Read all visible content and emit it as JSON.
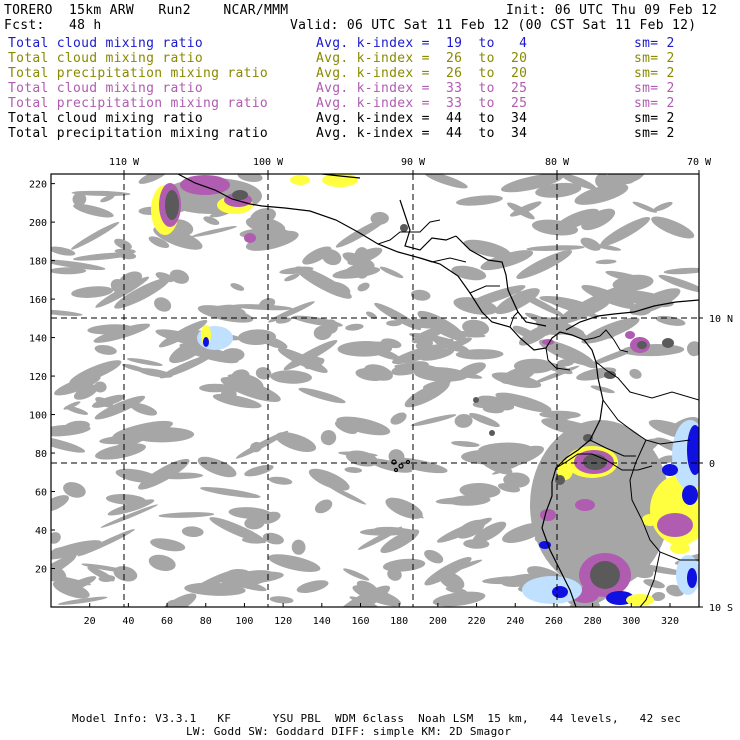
{
  "header": {
    "model": "TORERO  15km ARW   Run2    NCAR/MMM",
    "init": "Init: 06 UTC Thu 09 Feb 12",
    "fcst": "Fcst:   48 h",
    "valid": "Valid: 06 UTC Sat 11 Feb 12 (00 CST Sat 11 Feb 12)"
  },
  "legend": [
    {
      "field": "Total cloud mixing ratio",
      "avg": "Avg. k-index =  19  to   4",
      "sm": "sm= 2",
      "color": "#1a1acc"
    },
    {
      "field": "Total cloud mixing ratio",
      "avg": "Avg. k-index =  26  to  20",
      "sm": "sm= 2",
      "color": "#8a8a00"
    },
    {
      "field": "Total precipitation mixing ratio",
      "avg": "Avg. k-index =  26  to  20",
      "sm": "sm= 2",
      "color": "#8a8a00"
    },
    {
      "field": "Total cloud mixing ratio",
      "avg": "Avg. k-index =  33  to  25",
      "sm": "sm= 2",
      "color": "#b05cb0"
    },
    {
      "field": "Total precipitation mixing ratio",
      "avg": "Avg. k-index =  33  to  25",
      "sm": "sm= 2",
      "color": "#b05cb0"
    },
    {
      "field": "Total cloud mixing ratio",
      "avg": "Avg. k-index =  44  to  34",
      "sm": "sm= 2",
      "color": "#000000"
    },
    {
      "field": "Total precipitation mixing ratio",
      "avg": "Avg. k-index =  44  to  34",
      "sm": "sm= 2",
      "color": "#000000"
    }
  ],
  "map": {
    "lon_labels": [
      "110 W",
      "100 W",
      "90 W",
      "80 W",
      "70 W"
    ],
    "lat_labels": [
      "10 N",
      "0",
      "10 S"
    ],
    "x_ticks": [
      20,
      40,
      60,
      80,
      100,
      120,
      140,
      160,
      180,
      200,
      220,
      240,
      260,
      280,
      300,
      320
    ],
    "y_ticks": [
      220,
      200,
      180,
      160,
      140,
      120,
      100,
      80,
      60,
      40,
      20
    ],
    "x_range": [
      0,
      335
    ],
    "y_range": [
      0,
      225
    ],
    "colors": {
      "frame": "#000000",
      "cloud_gray": "#a6a6a6",
      "dark_gray": "#5a5a5a",
      "yellow": "#ffff40",
      "magenta": "#b05cb0",
      "light_blue": "#c0e0ff",
      "blue": "#1010e0"
    }
  },
  "footer": {
    "line1": "Model Info: V3.3.1   KF      YSU PBL  WDM 6class  Noah LSM  15 km,   44 levels,   42 sec",
    "line2": "LW: Godd SW: Goddard DIFF: simple KM: 2D Smagor"
  }
}
